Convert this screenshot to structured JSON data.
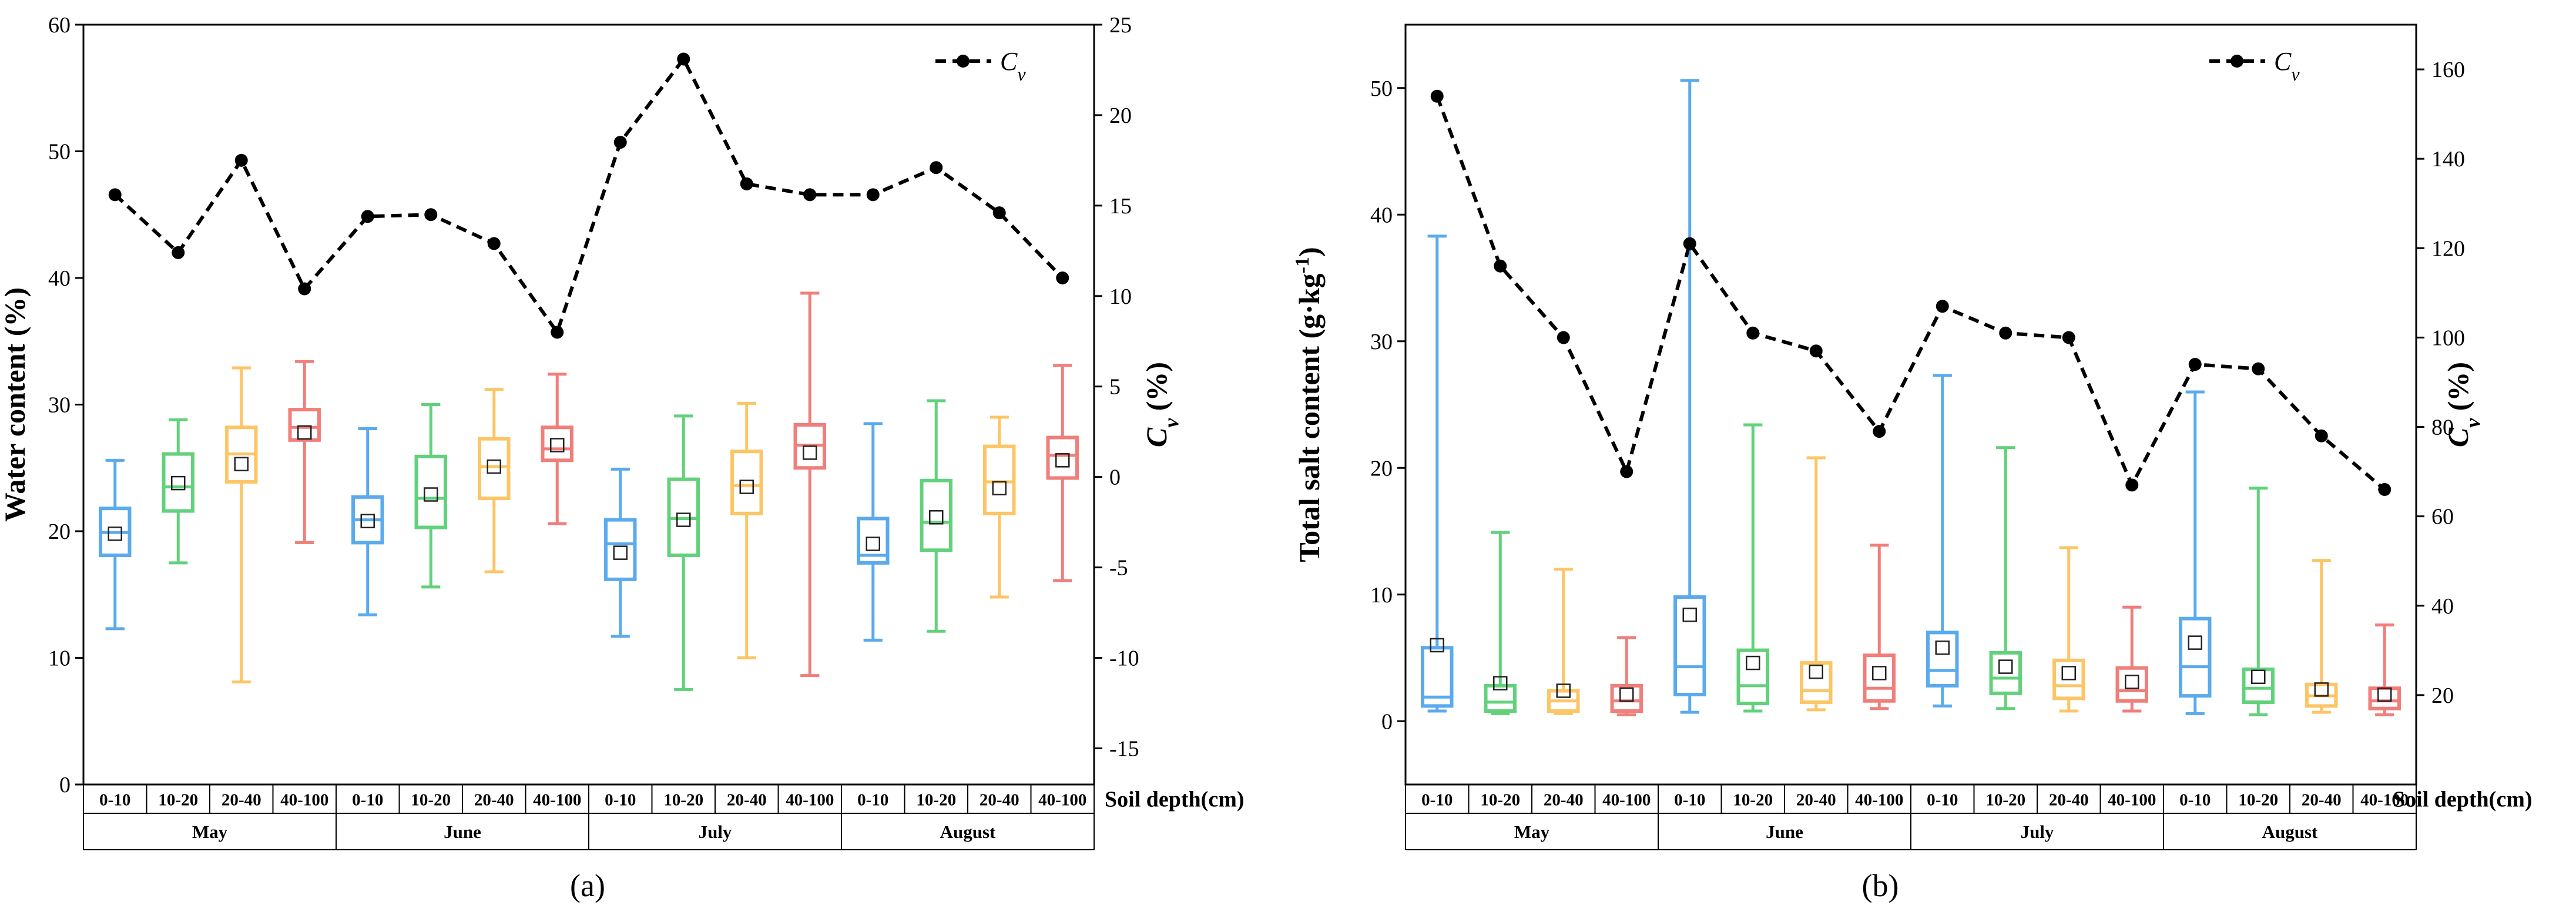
{
  "colors": {
    "0-10": "#5aaaed",
    "10-20": "#62d17c",
    "20-40": "#fcc566",
    "40-100": "#f07e7a",
    "cv_line": "#000000"
  },
  "chart_data": [
    {
      "type": "box",
      "panel_label": "(a)",
      "ylabel": "Water content (%)",
      "ylim": [
        0,
        60
      ],
      "yticks": [
        0,
        10,
        20,
        30,
        40,
        50,
        60
      ],
      "y2label": "Cv (%)",
      "y2lim": [
        -17,
        25
      ],
      "y2ticks": [
        -15,
        -10,
        -5,
        0,
        5,
        10,
        15,
        20,
        25
      ],
      "xlabel": "Soil depth(cm)",
      "depths": [
        "0-10",
        "10-20",
        "20-40",
        "40-100"
      ],
      "months": [
        "May",
        "June",
        "July",
        "August"
      ],
      "legend": "Cv",
      "boxes": [
        {
          "month": "May",
          "depth": "0-10",
          "min": 12.3,
          "q1": 18.1,
          "median": 19.9,
          "q3": 21.8,
          "max": 25.6,
          "mean": 19.8
        },
        {
          "month": "May",
          "depth": "10-20",
          "min": 17.5,
          "q1": 21.6,
          "median": 23.5,
          "q3": 26.1,
          "max": 28.8,
          "mean": 23.8
        },
        {
          "month": "May",
          "depth": "20-40",
          "min": 8.1,
          "q1": 23.9,
          "median": 26.1,
          "q3": 28.2,
          "max": 32.9,
          "mean": 25.3
        },
        {
          "month": "May",
          "depth": "40-100",
          "min": 19.1,
          "q1": 27.2,
          "median": 28.2,
          "q3": 29.6,
          "max": 33.4,
          "mean": 27.8
        },
        {
          "month": "June",
          "depth": "0-10",
          "min": 13.4,
          "q1": 19.1,
          "median": 20.9,
          "q3": 22.7,
          "max": 28.1,
          "mean": 20.8
        },
        {
          "month": "June",
          "depth": "10-20",
          "min": 15.6,
          "q1": 20.3,
          "median": 22.6,
          "q3": 25.9,
          "max": 30.0,
          "mean": 22.9
        },
        {
          "month": "June",
          "depth": "20-40",
          "min": 16.8,
          "q1": 22.6,
          "median": 25.1,
          "q3": 27.3,
          "max": 31.2,
          "mean": 25.1
        },
        {
          "month": "June",
          "depth": "40-100",
          "min": 20.6,
          "q1": 25.6,
          "median": 26.5,
          "q3": 28.2,
          "max": 32.4,
          "mean": 26.8
        },
        {
          "month": "July",
          "depth": "0-10",
          "min": 11.7,
          "q1": 16.2,
          "median": 19.0,
          "q3": 20.9,
          "max": 24.9,
          "mean": 18.3
        },
        {
          "month": "July",
          "depth": "10-20",
          "min": 7.5,
          "q1": 18.1,
          "median": 21.0,
          "q3": 24.1,
          "max": 29.1,
          "mean": 20.9
        },
        {
          "month": "July",
          "depth": "20-40",
          "min": 10.0,
          "q1": 21.4,
          "median": 23.6,
          "q3": 26.3,
          "max": 30.1,
          "mean": 23.5
        },
        {
          "month": "July",
          "depth": "40-100",
          "min": 8.6,
          "q1": 25.0,
          "median": 26.8,
          "q3": 28.4,
          "max": 38.8,
          "mean": 26.2
        },
        {
          "month": "August",
          "depth": "0-10",
          "min": 11.4,
          "q1": 17.5,
          "median": 18.1,
          "q3": 21.0,
          "max": 28.5,
          "mean": 19.0
        },
        {
          "month": "August",
          "depth": "10-20",
          "min": 12.1,
          "q1": 18.5,
          "median": 20.7,
          "q3": 24.0,
          "max": 30.3,
          "mean": 21.1
        },
        {
          "month": "August",
          "depth": "20-40",
          "min": 14.8,
          "q1": 21.4,
          "median": 23.9,
          "q3": 26.7,
          "max": 29.0,
          "mean": 23.4
        },
        {
          "month": "August",
          "depth": "40-100",
          "min": 16.1,
          "q1": 24.2,
          "median": 26.0,
          "q3": 27.4,
          "max": 33.1,
          "mean": 25.6
        }
      ],
      "cv": [
        15.6,
        12.4,
        17.5,
        10.4,
        14.4,
        14.5,
        12.9,
        8.0,
        18.5,
        23.1,
        16.2,
        15.6,
        15.6,
        17.1,
        14.6,
        11.0
      ]
    },
    {
      "type": "box",
      "panel_label": "(b)",
      "ylabel": "Total salt content (g·kg⁻¹)",
      "ylim": [
        -5,
        55
      ],
      "yticks": [
        0,
        10,
        20,
        30,
        40,
        50
      ],
      "y2label": "Cv (%)",
      "y2lim": [
        0,
        170
      ],
      "y2ticks": [
        20,
        40,
        60,
        80,
        100,
        120,
        140,
        160
      ],
      "xlabel": "Soil depth(cm)",
      "depths": [
        "0-10",
        "10-20",
        "20-40",
        "40-100"
      ],
      "months": [
        "May",
        "June",
        "July",
        "August"
      ],
      "legend": "Cv",
      "boxes": [
        {
          "month": "May",
          "depth": "0-10",
          "min": 0.8,
          "q1": 1.2,
          "median": 1.9,
          "q3": 5.8,
          "max": 38.3,
          "mean": 6.0
        },
        {
          "month": "May",
          "depth": "10-20",
          "min": 0.6,
          "q1": 0.8,
          "median": 1.5,
          "q3": 2.8,
          "max": 14.9,
          "mean": 3.0
        },
        {
          "month": "May",
          "depth": "20-40",
          "min": 0.6,
          "q1": 0.8,
          "median": 1.6,
          "q3": 2.4,
          "max": 12.0,
          "mean": 2.4
        },
        {
          "month": "May",
          "depth": "40-100",
          "min": 0.5,
          "q1": 0.8,
          "median": 1.6,
          "q3": 2.8,
          "max": 6.6,
          "mean": 2.1
        },
        {
          "month": "June",
          "depth": "0-10",
          "min": 0.7,
          "q1": 2.1,
          "median": 4.3,
          "q3": 9.8,
          "max": 50.6,
          "mean": 8.4
        },
        {
          "month": "June",
          "depth": "10-20",
          "min": 0.8,
          "q1": 1.4,
          "median": 2.8,
          "q3": 5.6,
          "max": 23.4,
          "mean": 4.6
        },
        {
          "month": "June",
          "depth": "20-40",
          "min": 0.9,
          "q1": 1.5,
          "median": 2.4,
          "q3": 4.6,
          "max": 20.8,
          "mean": 3.9
        },
        {
          "month": "June",
          "depth": "40-100",
          "min": 1.0,
          "q1": 1.6,
          "median": 2.6,
          "q3": 5.2,
          "max": 13.9,
          "mean": 3.8
        },
        {
          "month": "July",
          "depth": "0-10",
          "min": 1.2,
          "q1": 2.8,
          "median": 4.0,
          "q3": 7.0,
          "max": 27.3,
          "mean": 5.8
        },
        {
          "month": "July",
          "depth": "10-20",
          "min": 1.0,
          "q1": 2.2,
          "median": 3.4,
          "q3": 5.4,
          "max": 21.6,
          "mean": 4.3
        },
        {
          "month": "July",
          "depth": "20-40",
          "min": 0.8,
          "q1": 1.8,
          "median": 2.8,
          "q3": 4.8,
          "max": 13.7,
          "mean": 3.8
        },
        {
          "month": "July",
          "depth": "40-100",
          "min": 0.8,
          "q1": 1.6,
          "median": 2.4,
          "q3": 4.2,
          "max": 9.0,
          "mean": 3.1
        },
        {
          "month": "August",
          "depth": "0-10",
          "min": 0.6,
          "q1": 2.0,
          "median": 4.3,
          "q3": 8.1,
          "max": 26.0,
          "mean": 6.2
        },
        {
          "month": "August",
          "depth": "10-20",
          "min": 0.5,
          "q1": 1.5,
          "median": 2.6,
          "q3": 4.1,
          "max": 18.4,
          "mean": 3.5
        },
        {
          "month": "August",
          "depth": "20-40",
          "min": 0.7,
          "q1": 1.2,
          "median": 2.0,
          "q3": 2.9,
          "max": 12.7,
          "mean": 2.5
        },
        {
          "month": "August",
          "depth": "40-100",
          "min": 0.5,
          "q1": 1.0,
          "median": 1.6,
          "q3": 2.6,
          "max": 7.6,
          "mean": 2.1
        }
      ],
      "cv": [
        154,
        116,
        100,
        70,
        121,
        101,
        97,
        79,
        107,
        101,
        100,
        67,
        94,
        93,
        78,
        66
      ]
    }
  ]
}
